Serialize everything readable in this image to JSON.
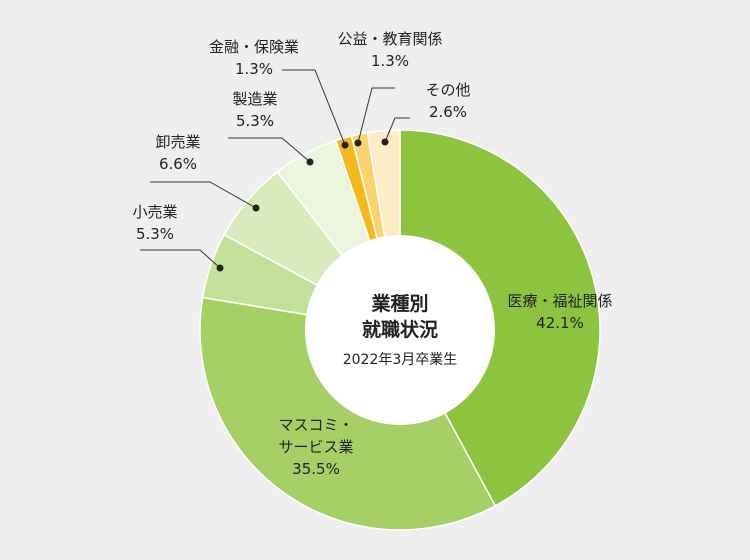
{
  "chart_data": {
    "type": "pie",
    "title": "業種別\n就職状況",
    "title_lines": [
      "業種別",
      "就職状況"
    ],
    "subtitle": "2022年3月卒業生",
    "unit": "%",
    "slices": [
      {
        "label_lines": [
          "医療・福祉関係"
        ],
        "label": "医療・福祉関係",
        "value": 42.1,
        "value_text": "42.1%",
        "color": "#8dc43f"
      },
      {
        "label_lines": [
          "マスコミ・",
          "サービス業"
        ],
        "label": "マスコミ・サービス業",
        "value": 35.5,
        "value_text": "35.5%",
        "color": "#a6d066"
      },
      {
        "label_lines": [
          "小売業"
        ],
        "label": "小売業",
        "value": 5.3,
        "value_text": "5.3%",
        "color": "#c3e09a"
      },
      {
        "label_lines": [
          "卸売業"
        ],
        "label": "卸売業",
        "value": 6.6,
        "value_text": "6.6%",
        "color": "#d9ebbd"
      },
      {
        "label_lines": [
          "製造業"
        ],
        "label": "製造業",
        "value": 5.3,
        "value_text": "5.3%",
        "color": "#ecf5dd"
      },
      {
        "label_lines": [
          "金融・保険業"
        ],
        "label": "金融・保険業",
        "value": 1.3,
        "value_text": "1.3%",
        "color": "#f6b81c"
      },
      {
        "label_lines": [
          "公益・教育関係"
        ],
        "label": "公益・教育関係",
        "value": 1.3,
        "value_text": "1.3%",
        "color": "#fbd36e"
      },
      {
        "label_lines": [
          "その他"
        ],
        "label": "その他",
        "value": 2.6,
        "value_text": "2.6%",
        "color": "#fdedc6"
      }
    ]
  }
}
